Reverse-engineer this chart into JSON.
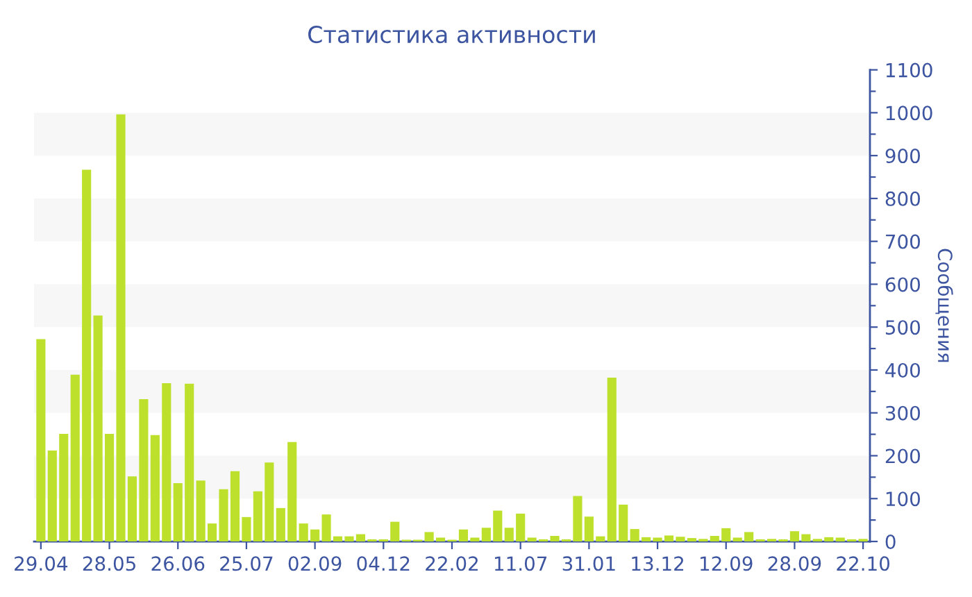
{
  "chart_data": {
    "type": "bar",
    "title": "Статистика активности",
    "ylabel": "Сообщения",
    "categories": [
      "29.04",
      null,
      null,
      null,
      null,
      null,
      "28.05",
      null,
      null,
      null,
      null,
      null,
      "26.06",
      null,
      null,
      null,
      null,
      null,
      "25.07",
      null,
      null,
      null,
      null,
      null,
      "02.09",
      null,
      null,
      null,
      null,
      null,
      "04.12",
      null,
      null,
      null,
      null,
      null,
      "22.02",
      null,
      null,
      null,
      null,
      null,
      "11.07",
      null,
      null,
      null,
      null,
      null,
      "31.01",
      null,
      null,
      null,
      null,
      null,
      "13.12",
      null,
      null,
      null,
      null,
      null,
      "12.09",
      null,
      null,
      null,
      null,
      null,
      "28.09",
      null,
      null,
      null,
      null,
      null,
      "22.10"
    ],
    "values": [
      472,
      212,
      251,
      389,
      867,
      527,
      251,
      996,
      152,
      332,
      248,
      369,
      136,
      368,
      142,
      42,
      122,
      164,
      57,
      117,
      184,
      78,
      232,
      42,
      28,
      63,
      12,
      12,
      17,
      5,
      5,
      46,
      4,
      4,
      22,
      9,
      4,
      28,
      9,
      32,
      72,
      32,
      65,
      9,
      5,
      13,
      5,
      106,
      58,
      12,
      382,
      86,
      29,
      10,
      9,
      14,
      11,
      8,
      6,
      13,
      31,
      9,
      22,
      5,
      6,
      5,
      24,
      17,
      6,
      10,
      9,
      5,
      6
    ],
    "color": "#bde02c",
    "ylim": [
      0,
      1100
    ],
    "yticks": [
      0,
      {
        "value": 50,
        "label": null
      },
      100,
      {
        "value": 150,
        "label": null
      },
      200,
      {
        "value": 250,
        "label": null
      },
      300,
      {
        "value": 350,
        "label": null
      },
      400,
      {
        "value": 450,
        "label": null
      },
      500,
      {
        "value": 550,
        "label": null
      },
      600,
      {
        "value": 650,
        "label": null
      },
      700,
      {
        "value": 750,
        "label": null
      },
      800,
      {
        "value": 850,
        "label": null
      },
      900,
      {
        "value": 950,
        "label": null
      },
      1000,
      {
        "value": 1050,
        "label": null
      },
      1100
    ],
    "bands": [
      {
        "axis": "y",
        "from": 100,
        "to": 200,
        "color": "#f7f7f7"
      },
      {
        "axis": "y",
        "from": 300,
        "to": 400,
        "color": "#f7f7f7"
      },
      {
        "axis": "y",
        "from": 500,
        "to": 600,
        "color": "#f7f7f7"
      },
      {
        "axis": "y",
        "from": 700,
        "to": 800,
        "color": "#f7f7f7"
      },
      {
        "axis": "y",
        "from": 900,
        "to": 1000,
        "color": "#f7f7f7"
      }
    ],
    "grid": false
  }
}
